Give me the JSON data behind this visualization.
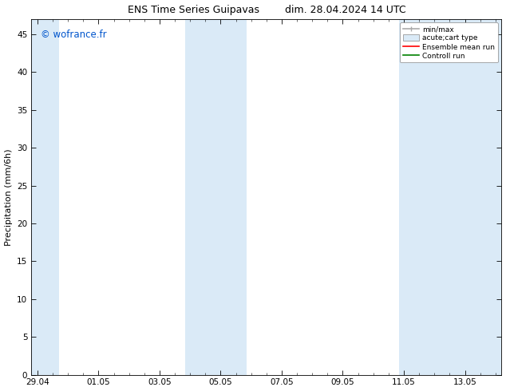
{
  "title": "ENS Time Series Guipavas        dim. 28.04.2024 14 UTC",
  "ylabel": "Precipitation (mm/6h)",
  "xlabel": "",
  "ylim": [
    0,
    47
  ],
  "yticks": [
    0,
    5,
    10,
    15,
    20,
    25,
    30,
    35,
    40,
    45
  ],
  "xtick_labels": [
    "29.04",
    "01.05",
    "03.05",
    "05.05",
    "07.05",
    "09.05",
    "11.05",
    "13.05"
  ],
  "xtick_positions": [
    0,
    2,
    4,
    6,
    8,
    10,
    12,
    14
  ],
  "xlim": [
    -0.2,
    15.2
  ],
  "bg_color": "#ffffff",
  "shade_color": "#daeaf7",
  "watermark": "© wofrance.fr",
  "watermark_color": "#0055cc",
  "legend_items": [
    {
      "label": "min/max",
      "color": "#aaaaaa",
      "lw": 1.2
    },
    {
      "label": "acute;cart type",
      "color": "#daeaf7",
      "lw": 8
    },
    {
      "label": "Ensemble mean run",
      "color": "#ff0000",
      "lw": 1.2
    },
    {
      "label": "Controll run",
      "color": "#008000",
      "lw": 1.2
    }
  ],
  "shade_bands": [
    {
      "x_start": -0.2,
      "x_end": 0.7
    },
    {
      "x_start": 4.85,
      "x_end": 6.85
    },
    {
      "x_start": 11.85,
      "x_end": 15.2
    }
  ],
  "title_fontsize": 9,
  "tick_fontsize": 7.5,
  "ylabel_fontsize": 8
}
